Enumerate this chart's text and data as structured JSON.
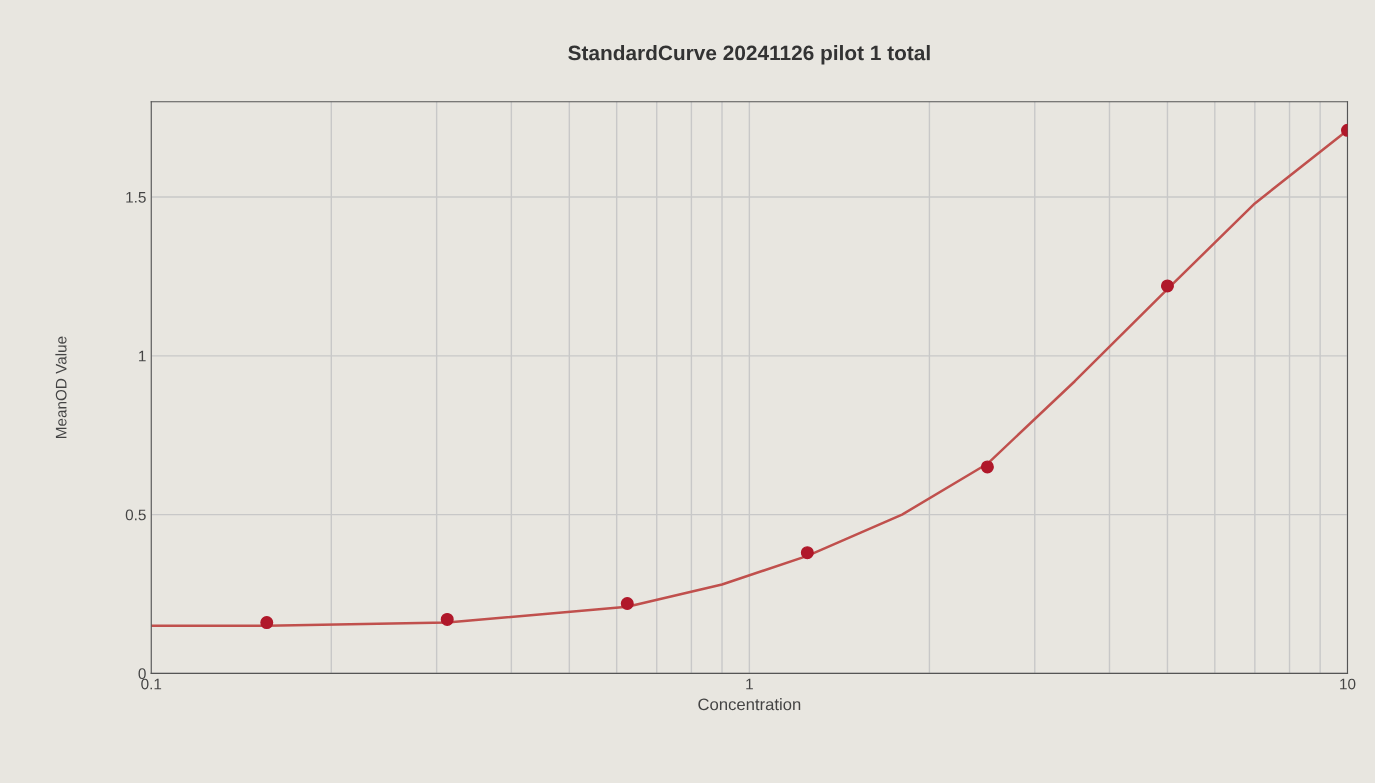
{
  "chart_data": {
    "type": "scatter",
    "title": "StandardCurve 20241126 pilot 1 total",
    "xlabel": "Concentration",
    "ylabel": "MeanOD Value",
    "log": "x",
    "grid": true,
    "xlim": [
      0.1,
      10
    ],
    "xticks": [
      0.1,
      1,
      10
    ],
    "ylim": [
      0,
      1.8
    ],
    "yticks": [
      0,
      0.5,
      1,
      1.5
    ],
    "series": [
      {
        "marker": "circle",
        "color": "#b0182a",
        "x": [
          0.156,
          0.3125,
          0.625,
          1.25,
          2.5,
          5,
          10
        ],
        "values": [
          0.16,
          0.17,
          0.22,
          0.38,
          0.65,
          1.22,
          1.71
        ]
      },
      {
        "type": "line",
        "color": "#c0504d",
        "line_style": "solid",
        "x": [
          0.1,
          0.156,
          0.3125,
          0.625,
          0.9,
          1.25,
          1.8,
          2.5,
          3.5,
          5,
          7,
          10
        ],
        "values": [
          0.15,
          0.15,
          0.16,
          0.21,
          0.28,
          0.37,
          0.5,
          0.66,
          0.92,
          1.21,
          1.48,
          1.71
        ]
      }
    ]
  }
}
